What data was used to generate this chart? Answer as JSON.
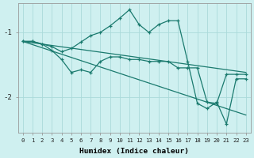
{
  "xlabel": "Humidex (Indice chaleur)",
  "bg_color": "#cff0f0",
  "line_color": "#1a7a6e",
  "grid_color": "#aadada",
  "xlim": [
    -0.5,
    23.5
  ],
  "ylim": [
    -2.55,
    -0.55
  ],
  "yticks": [
    -2.0,
    -1.0
  ],
  "xticks": [
    0,
    1,
    2,
    3,
    4,
    5,
    6,
    7,
    8,
    9,
    10,
    11,
    12,
    13,
    14,
    15,
    16,
    17,
    18,
    19,
    20,
    21,
    22,
    23
  ],
  "series": [
    {
      "x": [
        0,
        1,
        2,
        3,
        4,
        5,
        6,
        7,
        8,
        9,
        10,
        11,
        12,
        13,
        14,
        15,
        16,
        17,
        18,
        19,
        20,
        21,
        22,
        23
      ],
      "y": [
        -1.14,
        -1.14,
        -1.18,
        -1.22,
        -1.3,
        -1.25,
        -1.15,
        -1.05,
        -1.0,
        -0.9,
        -0.78,
        -0.65,
        -0.88,
        -1.0,
        -0.88,
        -0.82,
        -0.82,
        -1.45,
        -2.1,
        -2.18,
        -2.08,
        -2.42,
        -1.72,
        -1.72
      ],
      "marker": true
    },
    {
      "x": [
        0,
        1,
        2,
        3,
        4,
        5,
        6,
        7,
        8,
        9,
        10,
        11,
        12,
        13,
        14,
        15,
        16,
        17,
        18,
        19,
        20,
        21,
        22,
        23
      ],
      "y": [
        -1.14,
        -1.14,
        -1.18,
        -1.28,
        -1.42,
        -1.62,
        -1.58,
        -1.62,
        -1.45,
        -1.38,
        -1.38,
        -1.42,
        -1.42,
        -1.45,
        -1.45,
        -1.45,
        -1.55,
        -1.55,
        -1.55,
        -2.08,
        -2.1,
        -1.65,
        -1.65,
        -1.65
      ],
      "marker": true
    },
    {
      "x": [
        0,
        23
      ],
      "y": [
        -1.14,
        -1.62
      ],
      "marker": false
    },
    {
      "x": [
        0,
        23
      ],
      "y": [
        -1.14,
        -2.28
      ],
      "marker": false
    }
  ]
}
